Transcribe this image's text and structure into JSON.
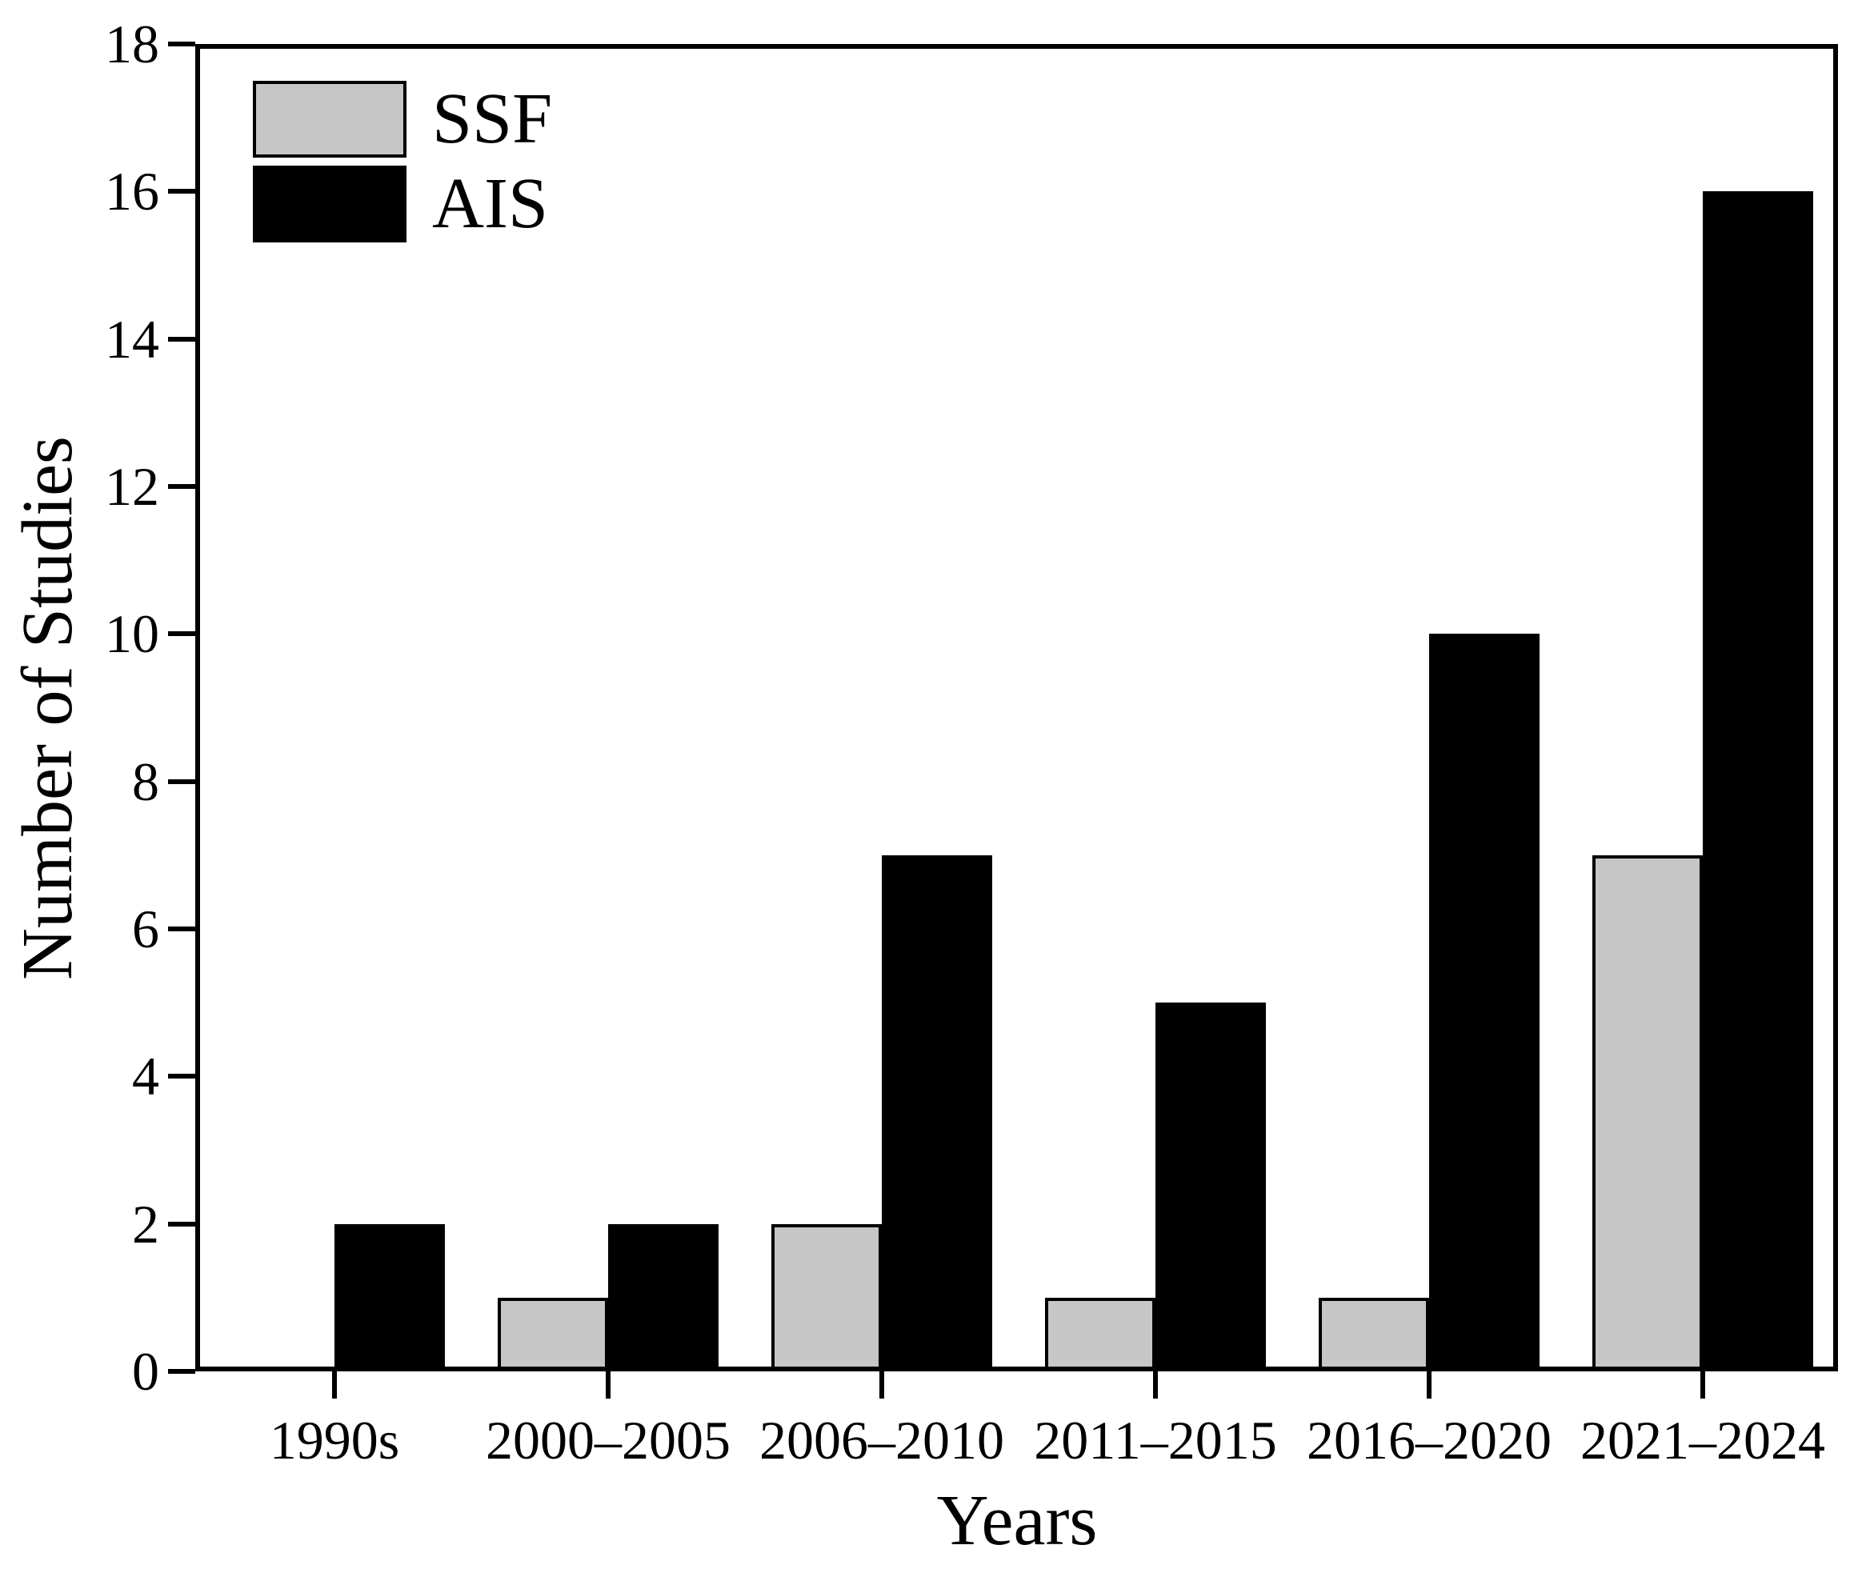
{
  "figure": {
    "background_color": "#ffffff",
    "axis_color": "#000000"
  },
  "legend": {
    "position": "top-left",
    "entries": [
      {
        "label": "SSF",
        "swatch_color": "#c6c6c6",
        "swatch_border": "#000000"
      },
      {
        "label": "AIS",
        "swatch_color": "#000000",
        "swatch_border": "#000000"
      }
    ]
  },
  "chart_data": {
    "type": "bar",
    "title": "",
    "xlabel": "Years",
    "ylabel": "Number of Studies",
    "categories": [
      "1990s",
      "2000–2005",
      "2006–2010",
      "2011–2015",
      "2016–2020",
      "2021–2024"
    ],
    "series": [
      {
        "name": "SSF",
        "color": "#c6c6c6",
        "values": [
          0,
          1,
          2,
          1,
          1,
          7
        ]
      },
      {
        "name": "AIS",
        "color": "#000000",
        "values": [
          2,
          2,
          7,
          5,
          10,
          16
        ]
      }
    ],
    "ylim": [
      0,
      18
    ],
    "yticks": [
      0,
      2,
      4,
      6,
      8,
      10,
      12,
      14,
      16,
      18
    ],
    "grid": false,
    "legend_position": "top-left",
    "bar_border_color": "#000000",
    "frame": "full-box",
    "tick_direction": "out"
  }
}
